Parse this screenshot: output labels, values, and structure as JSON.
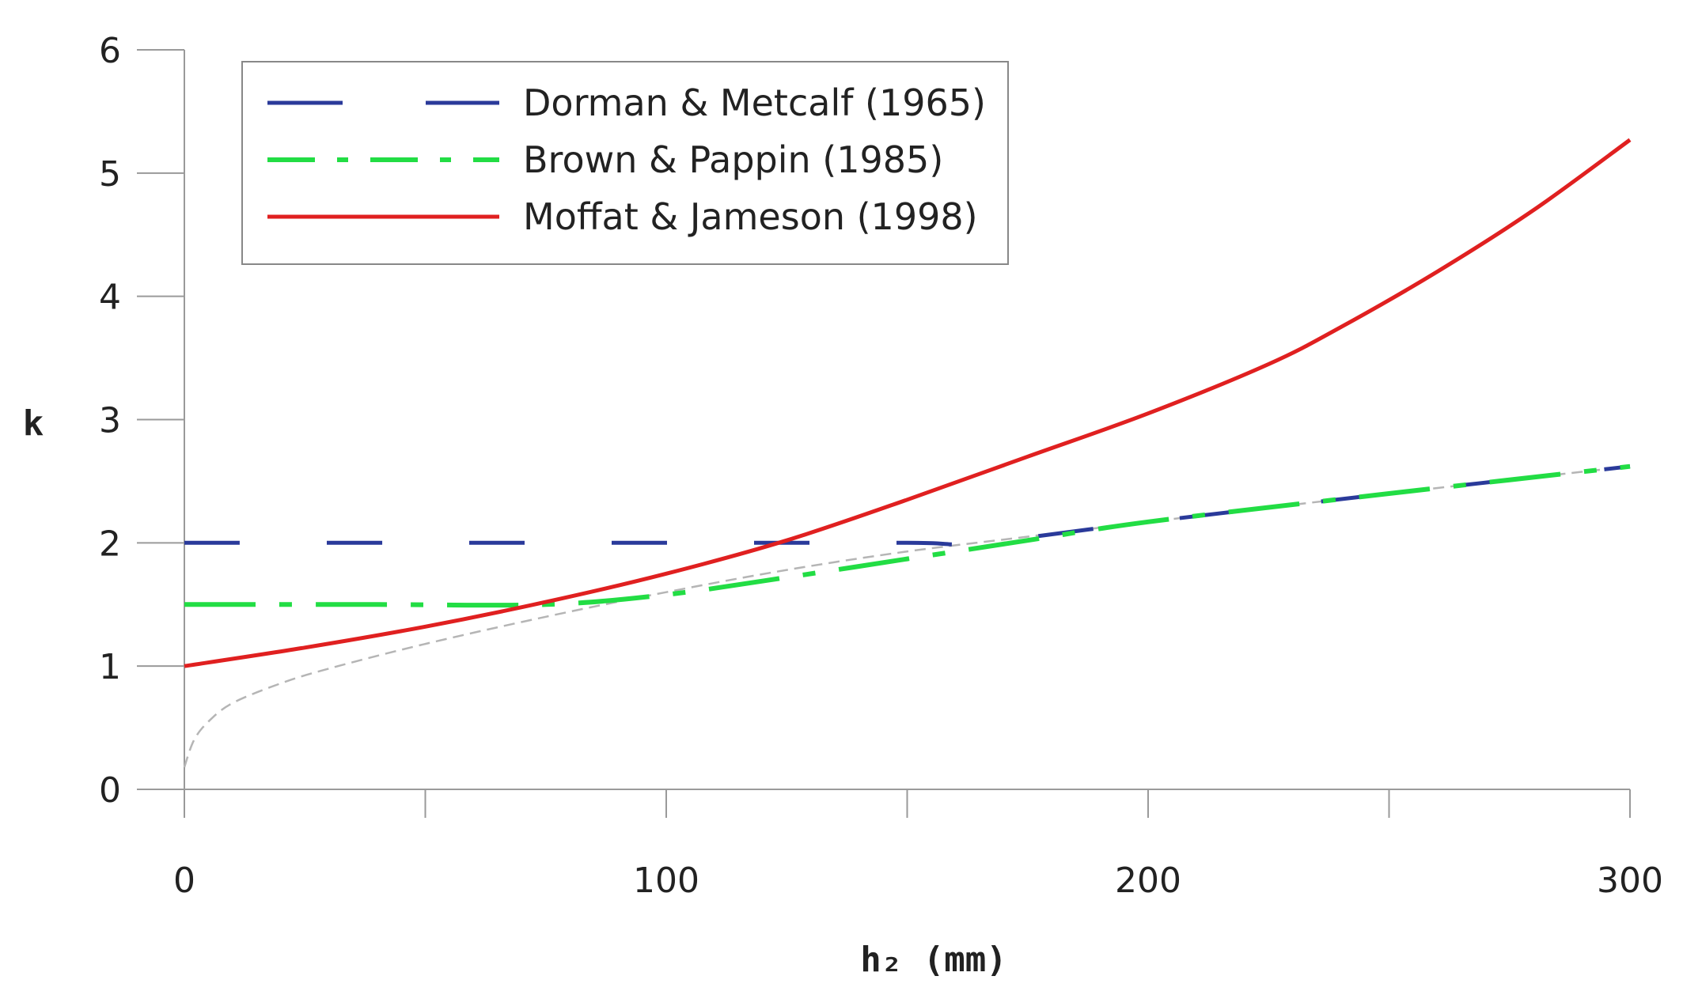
{
  "chart_data": {
    "type": "line",
    "xlabel": "h₂ (mm)",
    "ylabel": "k",
    "xlim": [
      0,
      300
    ],
    "ylim": [
      0,
      6
    ],
    "xticks": [
      0,
      100,
      200,
      300
    ],
    "yticks": [
      0,
      1,
      2,
      3,
      4,
      5,
      6
    ],
    "grid": false,
    "legend_position": "top-left",
    "colors": {
      "axis": "#9a9a9a",
      "dorman": "#2a3a9a",
      "brown": "#22dd44",
      "moffat": "#e02020",
      "reference": "#b5b5b5",
      "legend_border": "#888888"
    },
    "series": [
      {
        "key": "dorman",
        "name": "Dorman & Metcalf  (1965)",
        "style": "dashed",
        "x": [
          0,
          50,
          100,
          150,
          165,
          200,
          250,
          300
        ],
        "y": [
          2.0,
          2.0,
          2.0,
          2.0,
          2.0,
          2.17,
          2.4,
          2.62
        ]
      },
      {
        "key": "brown",
        "name": "Brown & Pappin (1985)",
        "style": "dash-dot",
        "x": [
          0,
          40,
          75,
          100,
          125,
          150,
          175,
          200,
          250,
          300
        ],
        "y": [
          1.5,
          1.5,
          1.5,
          1.58,
          1.72,
          1.87,
          2.02,
          2.17,
          2.4,
          2.62
        ]
      },
      {
        "key": "moffat",
        "name": "Moffat & Jameson (1998)",
        "style": "solid",
        "x": [
          0,
          25,
          50,
          75,
          100,
          125,
          150,
          175,
          200,
          225,
          240,
          260,
          280,
          300
        ],
        "y": [
          1.0,
          1.15,
          1.32,
          1.52,
          1.75,
          2.02,
          2.35,
          2.7,
          3.05,
          3.45,
          3.75,
          4.2,
          4.7,
          5.27
        ]
      }
    ],
    "reference_curve": {
      "style": "thin-dashed",
      "x": [
        0,
        2,
        5,
        10,
        20,
        30,
        50,
        75,
        100,
        125,
        150,
        175,
        200,
        250,
        300
      ],
      "y": [
        0.18,
        0.4,
        0.55,
        0.7,
        0.86,
        0.98,
        1.18,
        1.4,
        1.6,
        1.78,
        1.93,
        2.05,
        2.17,
        2.4,
        2.62
      ]
    }
  }
}
